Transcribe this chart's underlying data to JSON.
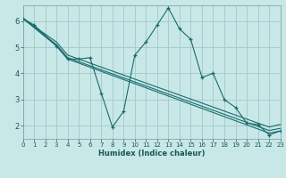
{
  "xlabel": "Humidex (Indice chaleur)",
  "bg_color": "#c8e8e8",
  "grid_color": "#a8cccc",
  "line_color": "#1a6b6b",
  "xlim": [
    0,
    23
  ],
  "ylim": [
    1.5,
    6.6
  ],
  "xticks": [
    0,
    1,
    2,
    3,
    4,
    5,
    6,
    7,
    8,
    9,
    10,
    11,
    12,
    13,
    14,
    15,
    16,
    17,
    18,
    19,
    20,
    21,
    22,
    23
  ],
  "yticks": [
    2,
    3,
    4,
    5,
    6
  ],
  "main_line": {
    "x": [
      0,
      1,
      3,
      4,
      5,
      6,
      7,
      8,
      9,
      10,
      11,
      12,
      13,
      14,
      15,
      16,
      17,
      18,
      19,
      20,
      21,
      22,
      23
    ],
    "y": [
      6.1,
      5.85,
      5.05,
      4.55,
      4.55,
      4.6,
      3.25,
      1.95,
      2.55,
      4.7,
      5.2,
      5.85,
      6.5,
      5.7,
      5.3,
      3.85,
      4.0,
      3.0,
      2.7,
      2.1,
      2.05,
      1.65,
      1.8
    ]
  },
  "straight_lines": [
    {
      "x": [
        0,
        3,
        4,
        22,
        23
      ],
      "y": [
        6.1,
        5.05,
        4.55,
        1.72,
        1.8
      ]
    },
    {
      "x": [
        0,
        3,
        4,
        22,
        23
      ],
      "y": [
        6.1,
        5.1,
        4.6,
        1.82,
        1.9
      ]
    },
    {
      "x": [
        0,
        3,
        4,
        22,
        23
      ],
      "y": [
        6.1,
        5.2,
        4.7,
        1.95,
        2.05
      ]
    }
  ]
}
